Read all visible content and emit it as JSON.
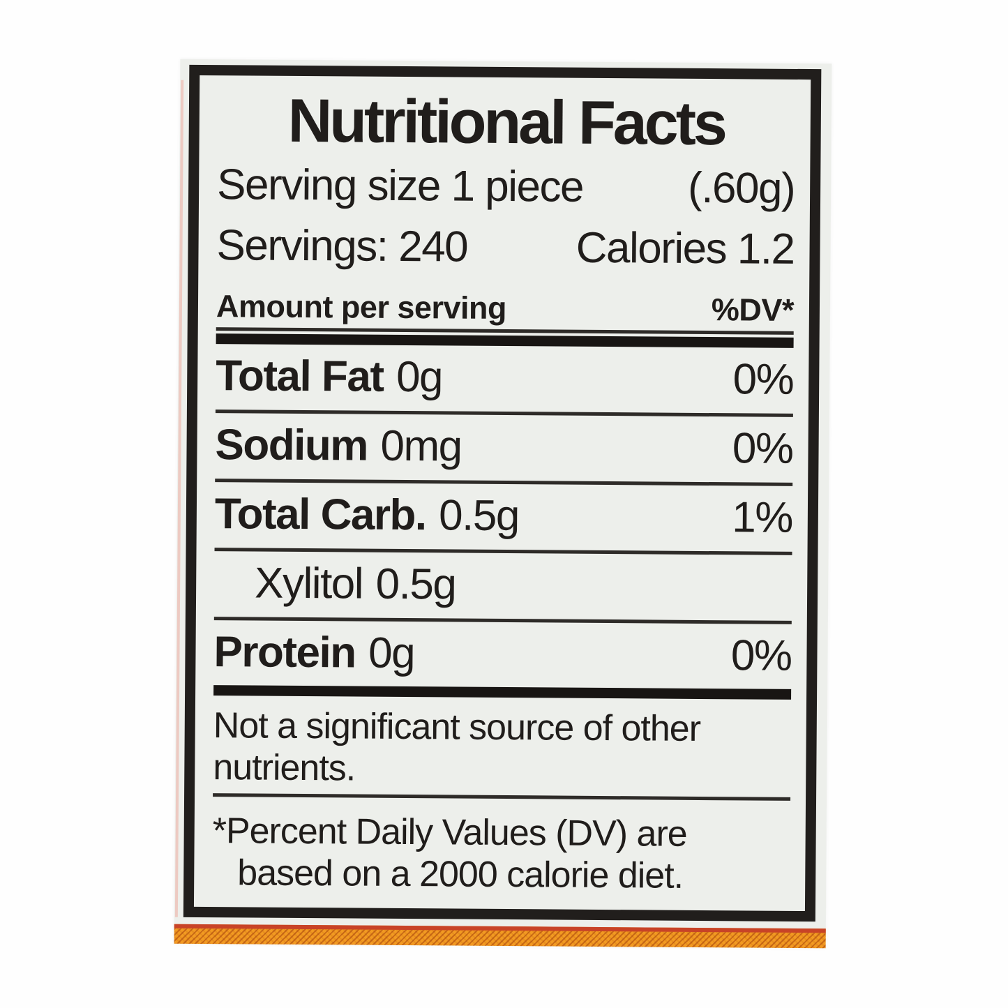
{
  "label": {
    "title": "Nutritional Facts",
    "serving": {
      "text": "Serving size 1 piece",
      "weight": "(.60g)"
    },
    "servings": {
      "text": "Servings: 240",
      "calories": "Calories 1.2"
    },
    "header": {
      "amount": "Amount per serving",
      "dv": "%DV*"
    },
    "rows": [
      {
        "name": "Total Fat",
        "amount": "0g",
        "dv": "0%"
      },
      {
        "name": "Sodium",
        "amount": "0mg",
        "dv": "0%"
      },
      {
        "name": "Total Carb.",
        "amount": "0.5g",
        "dv": "1%"
      },
      {
        "name": "Xylitol",
        "amount": "0.5g",
        "dv": ""
      },
      {
        "name": "Protein",
        "amount": "0g",
        "dv": "0%"
      }
    ],
    "note_lines": [
      "Not a significant source of other",
      "nutrients."
    ],
    "footnote_lines": [
      "*Percent Daily Values (DV) are",
      "based on a 2000 calorie diet."
    ],
    "colors": {
      "label_background": "#edefeb",
      "ink": "#201d1b",
      "border": "#211e1c",
      "stripe_orange": "#f29a22",
      "stripe_red": "#c84327"
    }
  }
}
